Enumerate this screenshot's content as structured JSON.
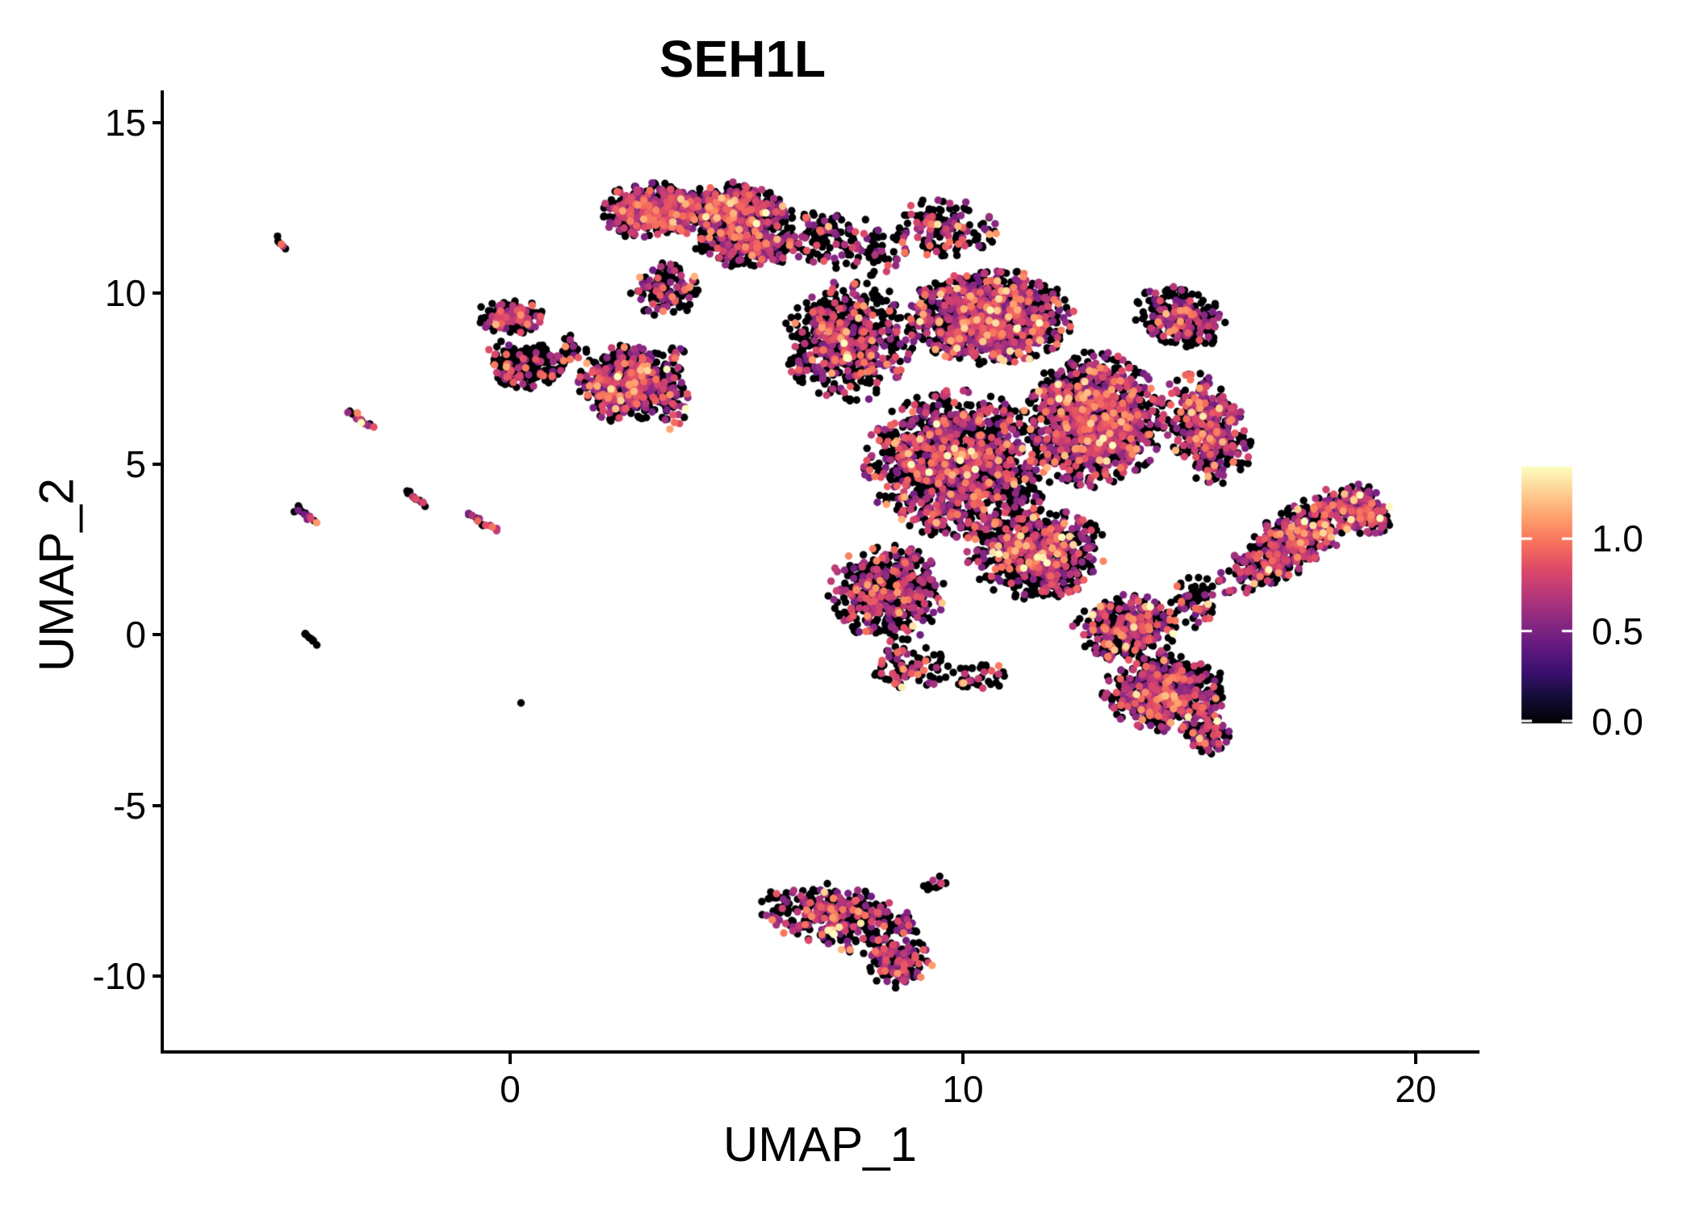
{
  "title": "SEH1L",
  "axes": {
    "x": {
      "label": "UMAP_1",
      "tick_labels": [
        "0",
        "10",
        "20"
      ],
      "tick_values": [
        0,
        10,
        20
      ],
      "range": [
        -7.6,
        21.4
      ]
    },
    "y": {
      "label": "UMAP_2",
      "tick_labels": [
        "15",
        "10",
        "5",
        "0",
        "-5",
        "-10"
      ],
      "tick_values": [
        15,
        10,
        5,
        0,
        -5,
        -10
      ],
      "range": [
        -12.2,
        15.9
      ]
    }
  },
  "legend": {
    "tick_labels": [
      "1.0",
      "0.5",
      "0.0"
    ],
    "tick_values": [
      1.0,
      0.5,
      0.0
    ],
    "min_value": 0.0,
    "max_value": 1.39
  },
  "colors": {
    "background": "#ffffff",
    "axis": "#000000",
    "text": "#000000",
    "zero_dot": "#000004",
    "legend_tick": "#ffffff",
    "magma_stops": [
      {
        "t": 0.0,
        "c": "#000004"
      },
      {
        "t": 0.1,
        "c": "#140e36"
      },
      {
        "t": 0.2,
        "c": "#3b0f70"
      },
      {
        "t": 0.3,
        "c": "#641a80"
      },
      {
        "t": 0.4,
        "c": "#8c2981"
      },
      {
        "t": 0.5,
        "c": "#b73779"
      },
      {
        "t": 0.6,
        "c": "#de4968"
      },
      {
        "t": 0.7,
        "c": "#f7705c"
      },
      {
        "t": 0.8,
        "c": "#fe9f6d"
      },
      {
        "t": 0.9,
        "c": "#fecf92"
      },
      {
        "t": 1.0,
        "c": "#fcfdbf"
      }
    ]
  },
  "chart_data": {
    "type": "scatter",
    "title": "SEH1L",
    "xlabel": "UMAP_1",
    "ylabel": "UMAP_2",
    "xlim": [
      -7.6,
      21.4
    ],
    "ylim": [
      -12.2,
      15.9
    ],
    "grid": false,
    "legend_position": "right",
    "colormap": "magma",
    "expression_range": [
      0.0,
      1.39
    ],
    "point_radius_px": 4.7,
    "value_model": {
      "expressed_base": 0.45,
      "expressed_spread": 0.33,
      "min_expressed": 0.3
    },
    "clusters": [
      {
        "id": "top-left",
        "cx": 3.1,
        "cy": 12.4,
        "rx": 1.15,
        "ry": 0.85,
        "rot": 0,
        "n": 500,
        "p": 0.52
      },
      {
        "id": "top-right",
        "cx": 4.9,
        "cy": 12.35,
        "rx": 1.35,
        "ry": 0.9,
        "rot": 0,
        "n": 600,
        "p": 0.42
      },
      {
        "id": "top-lower",
        "cx": 5.3,
        "cy": 11.35,
        "rx": 1.3,
        "ry": 0.6,
        "rot": 0,
        "n": 250,
        "p": 0.35
      },
      {
        "id": "top-right-sparse",
        "cx": 6.9,
        "cy": 11.7,
        "rx": 0.8,
        "ry": 0.85,
        "rot": 0,
        "n": 90,
        "p": 0.25
      },
      {
        "id": "top-tail",
        "cx": 3.4,
        "cy": 10.1,
        "rx": 0.75,
        "ry": 0.9,
        "rot": 0,
        "n": 130,
        "p": 0.3
      },
      {
        "id": "chain",
        "cx": 3.55,
        "cy": 7.3,
        "rx": 0.45,
        "ry": 1.3,
        "rot": 0,
        "n": 90,
        "p": 0.45
      },
      {
        "id": "ring-upper",
        "cx": 0.0,
        "cy": 9.3,
        "rx": 0.78,
        "ry": 0.52,
        "rot": 0,
        "n": 170,
        "p": 0.4
      },
      {
        "id": "ring-lower",
        "cx": 0.35,
        "cy": 7.9,
        "rx": 0.95,
        "ry": 0.75,
        "rot": -20,
        "n": 230,
        "p": 0.22
      },
      {
        "id": "ring-bridge",
        "cx": 1.35,
        "cy": 8.3,
        "rx": 0.45,
        "ry": 0.5,
        "rot": 0,
        "n": 35,
        "p": 0.2
      },
      {
        "id": "diamond",
        "cx": 2.55,
        "cy": 7.35,
        "rx": 1.05,
        "ry": 1.15,
        "rot": -20,
        "n": 600,
        "p": 0.42
      },
      {
        "id": "mass-left",
        "cx": 7.5,
        "cy": 8.6,
        "rx": 1.5,
        "ry": 1.8,
        "rot": 0,
        "n": 650,
        "p": 0.33
      },
      {
        "id": "mass-top",
        "cx": 10.6,
        "cy": 9.3,
        "rx": 1.9,
        "ry": 1.4,
        "rot": 0,
        "n": 1250,
        "p": 0.42
      },
      {
        "id": "mass-center",
        "cx": 9.9,
        "cy": 5.0,
        "rx": 2.1,
        "ry": 2.2,
        "rot": 0,
        "n": 1500,
        "p": 0.4
      },
      {
        "id": "mass-right",
        "cx": 12.9,
        "cy": 6.3,
        "rx": 1.6,
        "ry": 2.0,
        "rot": 0,
        "n": 1250,
        "p": 0.46
      },
      {
        "id": "mass-lower-left",
        "cx": 8.3,
        "cy": 1.2,
        "rx": 1.3,
        "ry": 1.5,
        "rot": 0,
        "n": 520,
        "p": 0.42
      },
      {
        "id": "mass-lower-mid",
        "cx": 11.6,
        "cy": 2.4,
        "rx": 1.6,
        "ry": 1.4,
        "rot": 0,
        "n": 750,
        "p": 0.42
      },
      {
        "id": "mass-arm",
        "cx": 14.8,
        "cy": 9.3,
        "rx": 1.1,
        "ry": 0.85,
        "rot": -30,
        "n": 280,
        "p": 0.3
      },
      {
        "id": "mass-right-edge",
        "cx": 15.4,
        "cy": 6.0,
        "rx": 0.9,
        "ry": 1.8,
        "rot": 15,
        "n": 420,
        "p": 0.5
      },
      {
        "id": "mass-lower-right",
        "cx": 13.6,
        "cy": 0.2,
        "rx": 1.2,
        "ry": 1.0,
        "rot": 0,
        "n": 380,
        "p": 0.42
      },
      {
        "id": "bridge-top-mass",
        "cx": 8.0,
        "cy": 11.3,
        "rx": 1.1,
        "ry": 0.9,
        "rot": 0,
        "n": 70,
        "p": 0.3
      },
      {
        "id": "mass-spur",
        "cx": 9.6,
        "cy": 11.9,
        "rx": 1.2,
        "ry": 0.95,
        "rot": 0,
        "n": 160,
        "p": 0.35
      },
      {
        "id": "mass-below",
        "cx": 8.8,
        "cy": -1.0,
        "rx": 1.0,
        "ry": 0.7,
        "rot": 0,
        "n": 90,
        "p": 0.3
      },
      {
        "id": "mass-below2",
        "cx": 10.3,
        "cy": -1.3,
        "rx": 0.8,
        "ry": 0.5,
        "rot": 0,
        "n": 40,
        "p": 0.3
      },
      {
        "id": "mass-wing-bridge",
        "cx": 15.1,
        "cy": 1.0,
        "rx": 0.6,
        "ry": 0.8,
        "rot": 0,
        "n": 60,
        "p": 0.35
      },
      {
        "id": "wing",
        "cx": 17.35,
        "cy": 2.8,
        "rx": 2.25,
        "ry": 0.8,
        "rot": 44,
        "n": 600,
        "p": 0.45
      },
      {
        "id": "wing-tip",
        "cx": 18.9,
        "cy": 3.6,
        "rx": 0.55,
        "ry": 0.8,
        "rot": 30,
        "n": 150,
        "p": 0.6
      },
      {
        "id": "br-blob",
        "cx": 14.5,
        "cy": -1.7,
        "rx": 1.5,
        "ry": 1.15,
        "rot": 0,
        "n": 600,
        "p": 0.45
      },
      {
        "id": "br-tail",
        "cx": 15.4,
        "cy": -3.0,
        "rx": 0.5,
        "ry": 0.6,
        "rot": 0,
        "n": 90,
        "p": 0.4
      },
      {
        "id": "bottom-main",
        "cx": 7.3,
        "cy": -8.3,
        "rx": 1.85,
        "ry": 0.95,
        "rot": -15,
        "n": 420,
        "p": 0.42
      },
      {
        "id": "bottom-tail",
        "cx": 8.55,
        "cy": -9.6,
        "rx": 0.8,
        "ry": 0.75,
        "rot": 0,
        "n": 170,
        "p": 0.45
      },
      {
        "id": "bottom-spur",
        "cx": 9.4,
        "cy": -7.3,
        "rx": 0.35,
        "ry": 0.25,
        "rot": 0,
        "n": 12,
        "p": 0.2
      }
    ],
    "streaks": [
      {
        "id": "streak-1",
        "x1": -5.15,
        "y1": 11.6,
        "x2": -4.95,
        "y2": 11.3,
        "n": 6,
        "p": 0.5
      },
      {
        "id": "streak-2",
        "x1": -3.55,
        "y1": 6.55,
        "x2": -3.1,
        "y2": 6.05,
        "n": 14,
        "p": 0.45
      },
      {
        "id": "streak-3",
        "x1": -2.3,
        "y1": 4.2,
        "x2": -1.9,
        "y2": 3.8,
        "n": 11,
        "p": 0.5
      },
      {
        "id": "streak-4",
        "x1": -4.75,
        "y1": 3.75,
        "x2": -4.3,
        "y2": 3.3,
        "n": 13,
        "p": 0.5
      },
      {
        "id": "streak-5",
        "x1": -0.95,
        "y1": 3.55,
        "x2": -0.3,
        "y2": 3.05,
        "n": 13,
        "p": 0.5
      },
      {
        "id": "streak-6",
        "x1": -4.55,
        "y1": 0.05,
        "x2": -4.3,
        "y2": -0.25,
        "n": 8,
        "p": 0.0
      },
      {
        "id": "dot-1",
        "x1": 0.25,
        "y1": -2.05,
        "x2": 0.25,
        "y2": -2.05,
        "n": 1,
        "p": 0.0
      }
    ]
  }
}
